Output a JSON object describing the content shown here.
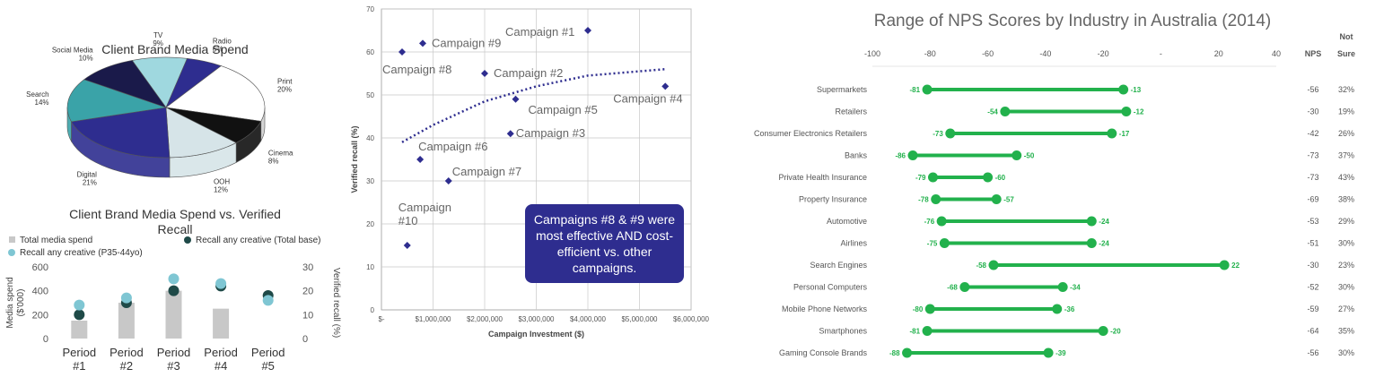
{
  "chart_data": [
    {
      "type": "pie",
      "title": "Client Brand Media Spend",
      "slices": [
        {
          "label": "TV",
          "pct_label": "9%",
          "value": 9,
          "color": "#9fd8df"
        },
        {
          "label": "Radio",
          "pct_label": "6%",
          "value": 6,
          "color": "#2e2d8f"
        },
        {
          "label": "Print",
          "pct_label": "20%",
          "value": 20,
          "color": "#ffffff"
        },
        {
          "label": "Cinema",
          "pct_label": "8%",
          "value": 8,
          "color": "#111111"
        },
        {
          "label": "OOH",
          "pct_label": "12%",
          "value": 12,
          "color": "#d6e4e8"
        },
        {
          "label": "Digital",
          "pct_label": "21%",
          "value": 21,
          "color": "#2e2d8f"
        },
        {
          "label": "Search",
          "pct_label": "14%",
          "value": 14,
          "color": "#3aa3a8"
        },
        {
          "label": "Social Media",
          "pct_label": "10%",
          "value": 10,
          "color": "#1a1a4a"
        }
      ]
    },
    {
      "type": "bar",
      "title": "Client Brand Media Spend vs. Verified Recall",
      "categories": [
        "Period\n#1",
        "Period\n#2",
        "Period\n#3",
        "Period\n#4",
        "Period\n#5"
      ],
      "ylabel": "Media spend ($'000)",
      "y2label": "Verified recall (%)",
      "ylim": [
        0,
        600
      ],
      "yticks": [
        "0",
        "200",
        "400",
        "600"
      ],
      "y2lim": [
        0,
        30
      ],
      "y2ticks": [
        "0",
        "10",
        "20",
        "30"
      ],
      "series": [
        {
          "name": "Total media spend",
          "kind": "bar",
          "axis": "left",
          "values": [
            150,
            300,
            400,
            250,
            0
          ],
          "color": "#c8c8c8"
        },
        {
          "name": "Recall any creative (Total base)",
          "kind": "point",
          "axis": "right",
          "values": [
            10,
            15,
            20,
            22,
            18
          ],
          "color": "#1f4a48"
        },
        {
          "name": "Recall any creative (P35-44yo)",
          "kind": "point",
          "axis": "right",
          "values": [
            14,
            17,
            25,
            23,
            16
          ],
          "color": "#7fc6d3"
        }
      ]
    },
    {
      "type": "scatter",
      "xlabel": "Campaign Investment ($)",
      "ylabel": "Verified recall (%)",
      "xlim": [
        0,
        6000000
      ],
      "ylim": [
        0,
        70
      ],
      "xticks": [
        "$-",
        "$1,000,000",
        "$2,000,000",
        "$3,000,000",
        "$4,000,000",
        "$5,000,000",
        "$6,000,000"
      ],
      "yticks": [
        "0",
        "10",
        "20",
        "30",
        "40",
        "50",
        "60",
        "70"
      ],
      "points": [
        {
          "label": "Campaign #1",
          "x": 4000000,
          "y": 65
        },
        {
          "label": "Campaign #9",
          "x": 800000,
          "y": 62
        },
        {
          "label": "Campaign #8",
          "x": 400000,
          "y": 60
        },
        {
          "label": "Campaign #2",
          "x": 2000000,
          "y": 55
        },
        {
          "label": "Campaign #5",
          "x": 2600000,
          "y": 49
        },
        {
          "label": "Campaign #4",
          "x": 5500000,
          "y": 52
        },
        {
          "label": "Campaign #3",
          "x": 2500000,
          "y": 41
        },
        {
          "label": "Campaign #6",
          "x": 750000,
          "y": 35
        },
        {
          "label": "Campaign #7",
          "x": 1300000,
          "y": 30
        },
        {
          "label": "Campaign\n#10",
          "x": 500000,
          "y": 15
        }
      ],
      "trend": [
        [
          400000,
          39
        ],
        [
          1000000,
          43
        ],
        [
          2000000,
          48.5
        ],
        [
          3000000,
          52
        ],
        [
          4000000,
          54.5
        ],
        [
          5000000,
          55.5
        ],
        [
          5500000,
          56
        ]
      ],
      "callout": "Campaigns #8 & #9 were most effective AND cost-efficient vs. other campaigns."
    },
    {
      "type": "range",
      "title": "Range of NPS Scores by Industry in Australia (2014)",
      "xlim": [
        -100,
        40
      ],
      "xticks": [
        "-100",
        "-80",
        "-60",
        "-40",
        "-20",
        "-",
        "20",
        "40"
      ],
      "col_headers": [
        "NPS",
        "Not\nSure"
      ],
      "rows": [
        {
          "industry": "Supermarkets",
          "low": -81,
          "high": -13,
          "nps": "-56",
          "not_sure": "32%"
        },
        {
          "industry": "Retailers",
          "low": -54,
          "high": -12,
          "nps": "-30",
          "not_sure": "19%"
        },
        {
          "industry": "Consumer Electronics Retailers",
          "low": -73,
          "high": -17,
          "nps": "-42",
          "not_sure": "26%"
        },
        {
          "industry": "Banks",
          "low": -86,
          "high": -50,
          "nps": "-73",
          "not_sure": "37%"
        },
        {
          "industry": "Private Health Insurance",
          "low": -79,
          "high": -60,
          "nps": "-73",
          "not_sure": "43%"
        },
        {
          "industry": "Property Insurance",
          "low": -78,
          "high": -57,
          "nps": "-69",
          "not_sure": "38%"
        },
        {
          "industry": "Automotive",
          "low": -76,
          "high": -24,
          "nps": "-53",
          "not_sure": "29%"
        },
        {
          "industry": "Airlines",
          "low": -75,
          "high": -24,
          "nps": "-51",
          "not_sure": "30%"
        },
        {
          "industry": "Search Engines",
          "low": -58,
          "high": 22,
          "nps": "-30",
          "not_sure": "23%"
        },
        {
          "industry": "Personal Computers",
          "low": -68,
          "high": -34,
          "nps": "-52",
          "not_sure": "30%"
        },
        {
          "industry": "Mobile Phone Networks",
          "low": -80,
          "high": -36,
          "nps": "-59",
          "not_sure": "27%"
        },
        {
          "industry": "Smartphones",
          "low": -81,
          "high": -20,
          "nps": "-64",
          "not_sure": "35%"
        },
        {
          "industry": "Gaming Console Brands",
          "low": -88,
          "high": -39,
          "nps": "-56",
          "not_sure": "30%"
        }
      ],
      "color": "#22b14c"
    }
  ]
}
